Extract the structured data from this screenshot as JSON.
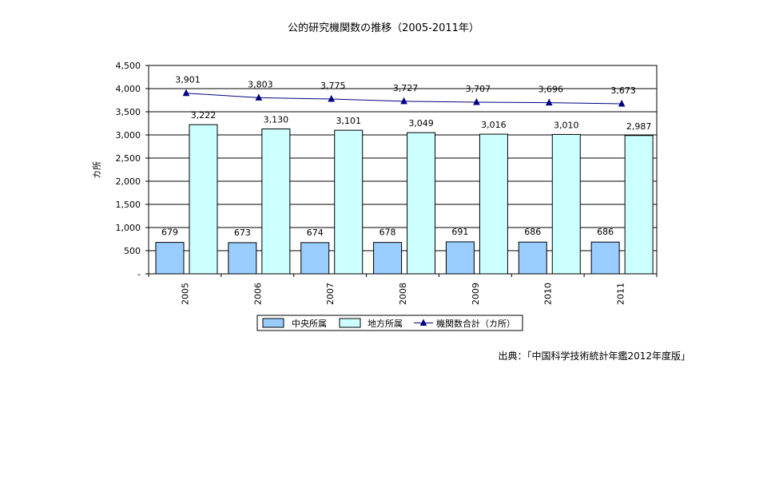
{
  "title": "公的研究機関数の推移（2005-2011年）",
  "source": "出典：「中国科学技術統計年鑑2012年度版」",
  "chart_data": {
    "type": "bar",
    "title": "公的研究機関数の推移（2005-2011年）",
    "ylabel": "カ所",
    "xlabel": "",
    "ylim": [
      0,
      4500
    ],
    "yticks": [
      0,
      500,
      1000,
      1500,
      2000,
      2500,
      3000,
      3500,
      4000,
      4500
    ],
    "ytick_labels": [
      "-",
      "500",
      "1,000",
      "1,500",
      "2,000",
      "2,500",
      "3,000",
      "3,500",
      "4,000",
      "4,500"
    ],
    "categories": [
      "2005",
      "2006",
      "2007",
      "2008",
      "2009",
      "2010",
      "2011"
    ],
    "series": [
      {
        "name": "中央所属",
        "kind": "bar",
        "color": "#99CCFF",
        "values": [
          679,
          673,
          674,
          678,
          691,
          686,
          686
        ],
        "labels": [
          "679",
          "673",
          "674",
          "678",
          "691",
          "686",
          "686"
        ]
      },
      {
        "name": "地方所属",
        "kind": "bar",
        "color": "#CCFFFF",
        "values": [
          3222,
          3130,
          3101,
          3049,
          3016,
          3010,
          2987
        ],
        "labels": [
          "3,222",
          "3,130",
          "3,101",
          "3,049",
          "3,016",
          "3,010",
          "2,987"
        ]
      },
      {
        "name": "機関数合計（カ所）",
        "kind": "line",
        "color": "#000080",
        "marker": "triangle",
        "values": [
          3901,
          3803,
          3775,
          3727,
          3707,
          3696,
          3673
        ],
        "labels": [
          "3,901",
          "3,803",
          "3,775",
          "3,727",
          "3,707",
          "3,696",
          "3,673"
        ]
      }
    ],
    "grid": true,
    "legend_position": "bottom"
  }
}
